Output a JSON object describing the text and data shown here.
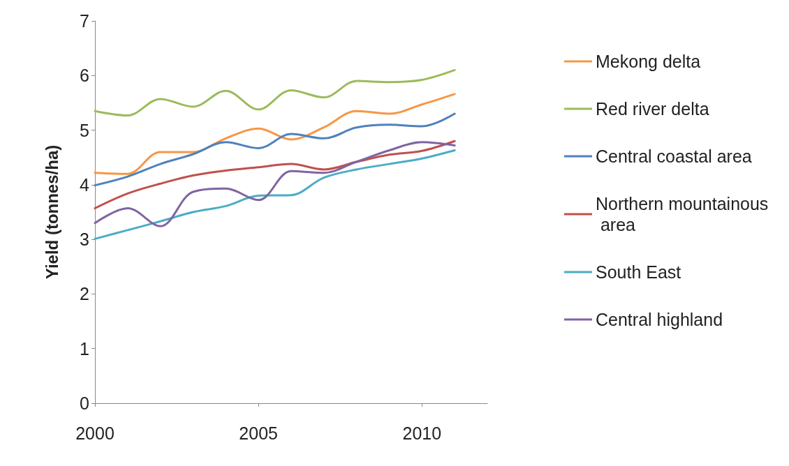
{
  "chart_data": {
    "type": "line",
    "ylabel": "Yield (tonnes/ha)",
    "x": [
      2000,
      2001,
      2002,
      2003,
      2004,
      2005,
      2006,
      2007,
      2008,
      2009,
      2010,
      2011
    ],
    "xlim": [
      2000,
      2012
    ],
    "xticks": [
      2000,
      2005,
      2010
    ],
    "ylim": [
      0,
      7
    ],
    "yticks": [
      0,
      1,
      2,
      3,
      4,
      5,
      6,
      7
    ],
    "grid": false,
    "legend": "right",
    "marker": "none",
    "line_style": "solid",
    "series": [
      {
        "name": "Mekong delta",
        "color": "#f79646",
        "values": [
          4.22,
          4.2,
          4.6,
          4.6,
          4.85,
          5.03,
          4.83,
          5.05,
          5.35,
          5.3,
          5.47,
          5.66
        ]
      },
      {
        "name": "Red river delta",
        "color": "#9bbb59",
        "values": [
          5.35,
          5.27,
          5.57,
          5.43,
          5.72,
          5.38,
          5.73,
          5.6,
          5.9,
          5.88,
          5.92,
          6.1
        ]
      },
      {
        "name": "Central coastal area",
        "color": "#4f81bd",
        "values": [
          3.99,
          4.15,
          4.38,
          4.56,
          4.78,
          4.67,
          4.93,
          4.85,
          5.05,
          5.1,
          5.07,
          5.3
        ]
      },
      {
        "name": "Northern mountainous area",
        "color": "#c0504d",
        "values": [
          3.57,
          3.84,
          4.02,
          4.17,
          4.26,
          4.32,
          4.38,
          4.28,
          4.42,
          4.55,
          4.62,
          4.8
        ]
      },
      {
        "name": "South East",
        "color": "#4bacc6",
        "values": [
          3.01,
          3.17,
          3.33,
          3.5,
          3.61,
          3.8,
          3.81,
          4.13,
          4.28,
          4.38,
          4.48,
          4.63
        ]
      },
      {
        "name": "Central highland",
        "color": "#8064a2",
        "values": [
          3.3,
          3.57,
          3.24,
          3.87,
          3.93,
          3.72,
          4.25,
          4.22,
          4.42,
          4.63,
          4.78,
          4.72
        ]
      }
    ]
  }
}
